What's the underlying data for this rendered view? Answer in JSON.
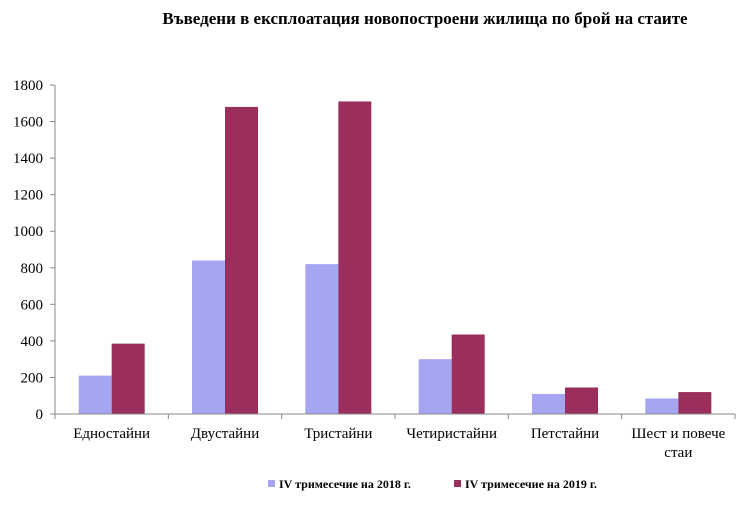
{
  "chart_data": {
    "type": "bar",
    "title": "Въведени в експлоатация новопостроени жилища по брой на стаите",
    "categories": [
      "Едностайни",
      "Двустайни",
      "Тристайни",
      "Четиристайни",
      "Петстайни",
      "Шест и повече стаи"
    ],
    "category_lines": [
      [
        "Едностайни"
      ],
      [
        "Двустайни"
      ],
      [
        "Тристайни"
      ],
      [
        "Четиристайни"
      ],
      [
        "Петстайни"
      ],
      [
        "Шест и повече",
        "стаи"
      ]
    ],
    "series": [
      {
        "name": "IV тримесечие на 2018 г.",
        "color": "#a5a5f2",
        "values": [
          210,
          840,
          820,
          300,
          110,
          85
        ]
      },
      {
        "name": "IV тримесечие на 2019 г.",
        "color": "#9a2e5c",
        "values": [
          385,
          1680,
          1710,
          435,
          145,
          120
        ]
      }
    ],
    "yticks": [
      0,
      200,
      400,
      600,
      800,
      1000,
      1200,
      1400,
      1600,
      1800
    ],
    "ylim": [
      0,
      1800
    ],
    "grid": false,
    "legend_position": "bottom"
  }
}
